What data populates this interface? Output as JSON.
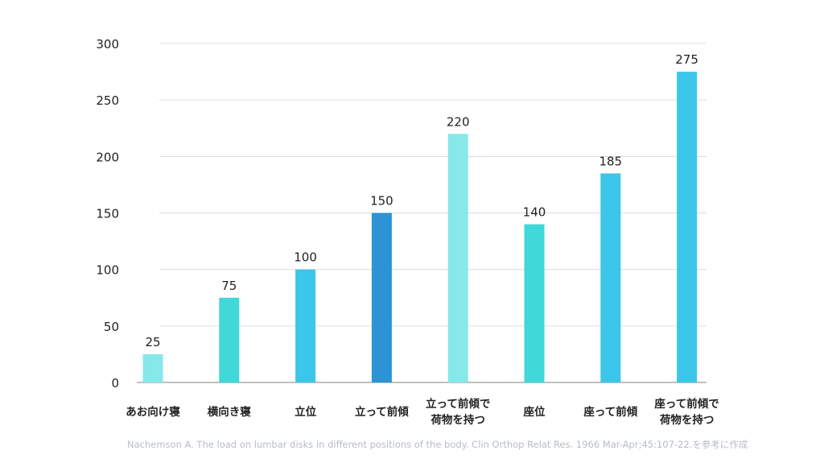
{
  "chart_data": {
    "type": "bar",
    "categories": [
      "あお向け寝",
      "横向き寝",
      "立位",
      "立って前傾",
      "立って前傾で\n荷物を持つ",
      "座位",
      "座って前傾",
      "座って前傾で\n荷物を持つ"
    ],
    "values": [
      25,
      75,
      100,
      150,
      220,
      140,
      185,
      275
    ],
    "data_labels": [
      "25",
      "75",
      "100",
      "150",
      "220",
      "140",
      "185",
      "275"
    ],
    "bar_colors": [
      "#86e8e8",
      "#40d8d8",
      "#3bc6ea",
      "#2b93d6",
      "#86e8e8",
      "#40d8d8",
      "#3bc6ea",
      "#3bc6ea"
    ],
    "ylim": [
      0,
      300
    ],
    "yticks": [
      0,
      50,
      100,
      150,
      200,
      250,
      300
    ],
    "grid": true,
    "title": "",
    "xlabel": "",
    "ylabel": ""
  },
  "caption": "Nachemson A. The load on lumbar disks in different positions of the body. Clin Orthop Relat Res. 1966 Mar-Apr;45:107-22.を参考に作成"
}
